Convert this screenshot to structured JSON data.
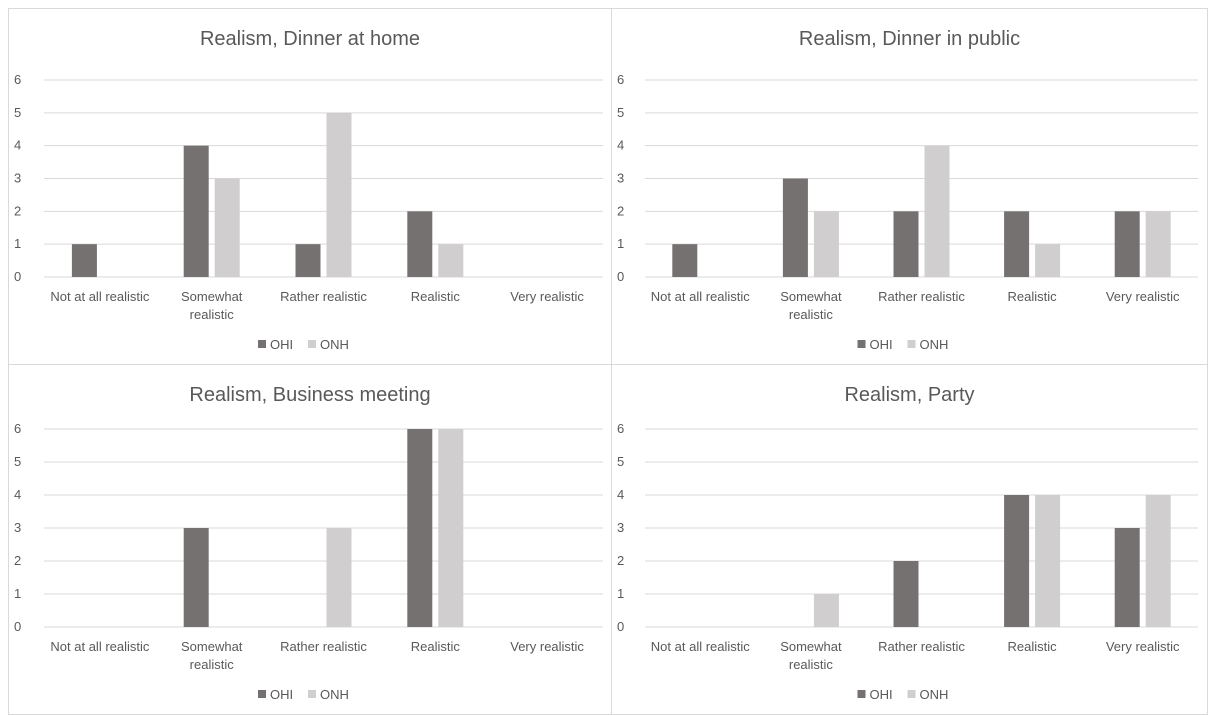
{
  "colors": {
    "OHI": "#767171",
    "ONH": "#d0cece",
    "grid": "#d9d9d9",
    "text": "#595959"
  },
  "chart_data": [
    {
      "type": "bar",
      "title": "Realism, Dinner at home",
      "categories": [
        "Not at all realistic",
        "Somewhat realistic",
        "Rather realistic",
        "Realistic",
        "Very realistic"
      ],
      "category_lines": [
        [
          "Not at all realistic"
        ],
        [
          "Somewhat",
          "realistic"
        ],
        [
          "Rather realistic"
        ],
        [
          "Realistic"
        ],
        [
          "Very realistic"
        ]
      ],
      "series": [
        {
          "name": "OHI",
          "values": [
            1,
            4,
            1,
            2,
            0
          ]
        },
        {
          "name": "ONH",
          "values": [
            0,
            3,
            5,
            1,
            0
          ]
        }
      ],
      "yticks": [
        "0",
        "1",
        "2",
        "3",
        "4",
        "5",
        "6"
      ],
      "ylim": [
        0,
        6
      ],
      "grid": true,
      "legend": "bottom"
    },
    {
      "type": "bar",
      "title": "Realism, Dinner in public",
      "categories": [
        "Not at all realistic",
        "Somewhat realistic",
        "Rather realistic",
        "Realistic",
        "Very realistic"
      ],
      "category_lines": [
        [
          "Not at all realistic"
        ],
        [
          "Somewhat",
          "realistic"
        ],
        [
          "Rather realistic"
        ],
        [
          "Realistic"
        ],
        [
          "Very realistic"
        ]
      ],
      "series": [
        {
          "name": "OHI",
          "values": [
            1,
            3,
            2,
            2,
            2
          ]
        },
        {
          "name": "ONH",
          "values": [
            0,
            2,
            4,
            1,
            2
          ]
        }
      ],
      "yticks": [
        "0",
        "1",
        "2",
        "3",
        "4",
        "5",
        "6"
      ],
      "ylim": [
        0,
        6
      ],
      "grid": true,
      "legend": "bottom"
    },
    {
      "type": "bar",
      "title": "Realism, Business meeting",
      "categories": [
        "Not at all realistic",
        "Somewhat realistic",
        "Rather realistic",
        "Realistic",
        "Very realistic"
      ],
      "category_lines": [
        [
          "Not at all realistic"
        ],
        [
          "Somewhat",
          "realistic"
        ],
        [
          "Rather realistic"
        ],
        [
          "Realistic"
        ],
        [
          "Very realistic"
        ]
      ],
      "series": [
        {
          "name": "OHI",
          "values": [
            0,
            3,
            0,
            6,
            0
          ]
        },
        {
          "name": "ONH",
          "values": [
            0,
            0,
            3,
            6,
            0
          ]
        }
      ],
      "yticks": [
        "0",
        "1",
        "2",
        "3",
        "4",
        "5",
        "6"
      ],
      "ylim": [
        0,
        6
      ],
      "grid": true,
      "legend": "bottom"
    },
    {
      "type": "bar",
      "title": "Realism, Party",
      "categories": [
        "Not at all realistic",
        "Somewhat realistic",
        "Rather realistic",
        "Realistic",
        "Very realistic"
      ],
      "category_lines": [
        [
          "Not at all realistic"
        ],
        [
          "Somewhat",
          "realistic"
        ],
        [
          "Rather realistic"
        ],
        [
          "Realistic"
        ],
        [
          "Very realistic"
        ]
      ],
      "series": [
        {
          "name": "OHI",
          "values": [
            0,
            0,
            2,
            4,
            3
          ]
        },
        {
          "name": "ONH",
          "values": [
            0,
            1,
            0,
            4,
            4
          ]
        }
      ],
      "yticks": [
        "0",
        "1",
        "2",
        "3",
        "4",
        "5",
        "6"
      ],
      "ylim": [
        0,
        6
      ],
      "grid": true,
      "legend": "bottom"
    }
  ]
}
